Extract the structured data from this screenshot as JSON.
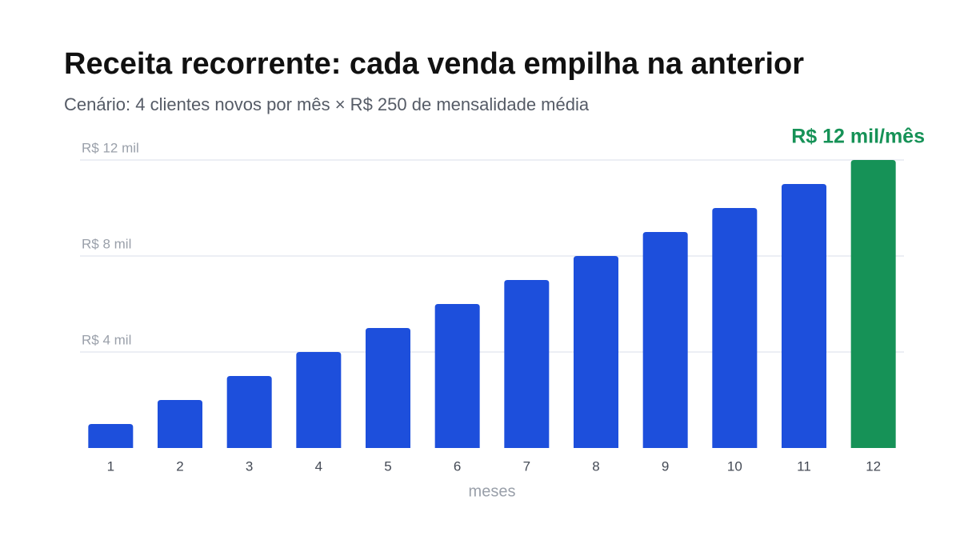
{
  "chart_data": {
    "type": "bar",
    "title": "Receita recorrente: cada venda empilha na anterior",
    "subtitle": "Cenário: 4 clientes novos por mês × R$ 250 de mensalidade média",
    "x_label": "meses",
    "categories": [
      "1",
      "2",
      "3",
      "4",
      "5",
      "6",
      "7",
      "8",
      "9",
      "10",
      "11",
      "12"
    ],
    "values": [
      1000,
      2000,
      3000,
      4000,
      5000,
      6000,
      7000,
      8000,
      9000,
      10000,
      11000,
      12000
    ],
    "value_labels": [
      null,
      null,
      null,
      null,
      null,
      null,
      null,
      null,
      null,
      null,
      null,
      "R$ 12 mil/mês"
    ],
    "colors": [
      "#1d4fdc",
      "#1d4fdc",
      "#1d4fdc",
      "#1d4fdc",
      "#1d4fdc",
      "#1d4fdc",
      "#1d4fdc",
      "#1d4fdc",
      "#1d4fdc",
      "#1d4fdc",
      "#1d4fdc",
      "#169257"
    ],
    "ylim": [
      0,
      12000
    ],
    "yticks": [
      {
        "value": 4000,
        "label": "R$ 4 mil"
      },
      {
        "value": 8000,
        "label": "R$ 8 mil"
      },
      {
        "value": 12000,
        "label": "R$ 12 mil"
      }
    ],
    "grid": true
  }
}
